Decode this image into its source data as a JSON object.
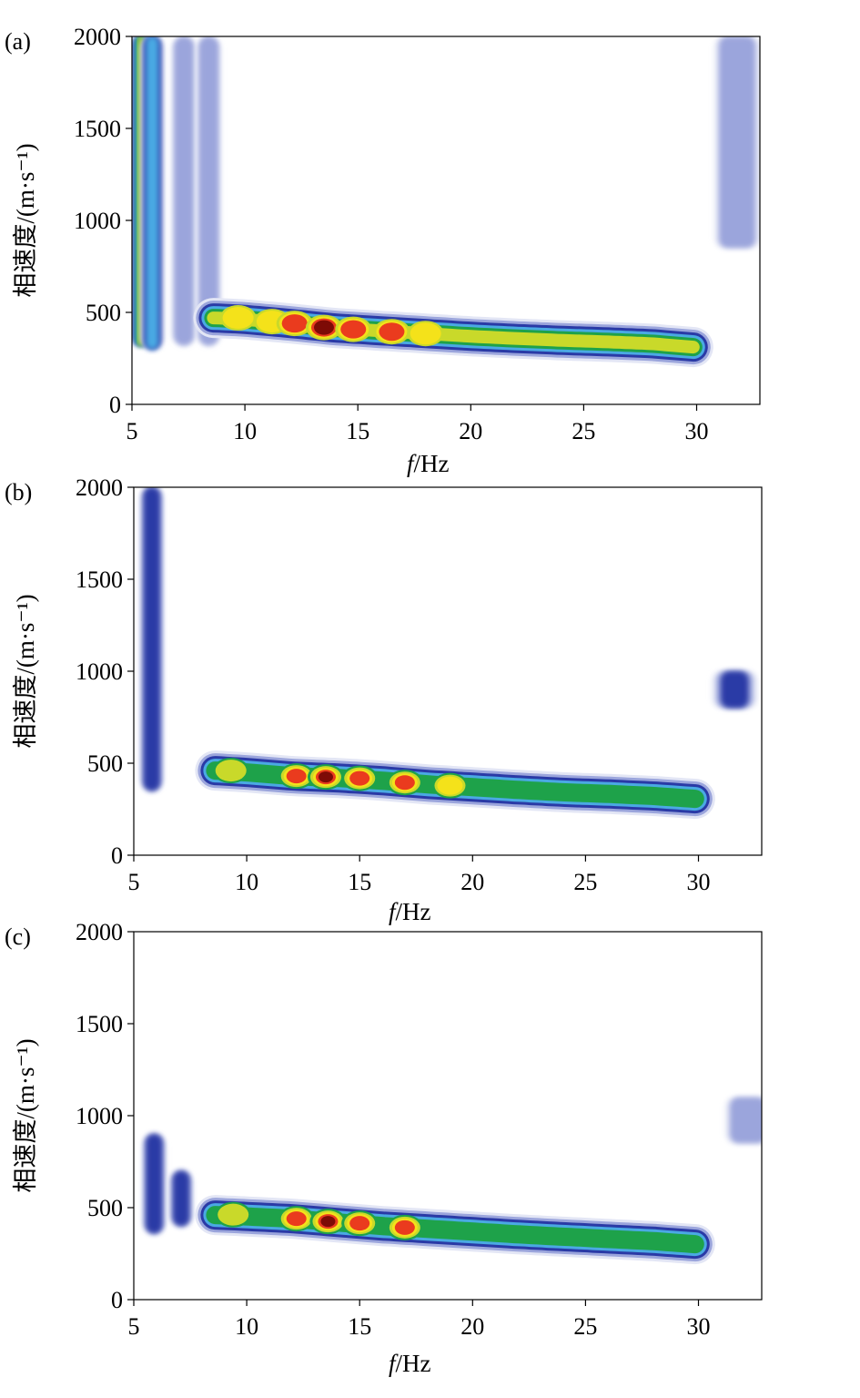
{
  "chart_data": [
    {
      "type": "heatmap",
      "panel_label": "(a)",
      "xlabel_italic": "f",
      "xlabel_unit": "/Hz",
      "ylabel": "相速度/(m·s⁻¹)",
      "xlim": [
        5,
        32.8
      ],
      "ylim": [
        0,
        2000
      ],
      "xticks": [
        5,
        10,
        15,
        20,
        25,
        30
      ],
      "yticks": [
        0,
        500,
        1000,
        1500,
        2000
      ],
      "colormap": [
        "#ffffff",
        "#e3e6f5",
        "#9ba5dc",
        "#2a3aa6",
        "#4aa9e3",
        "#1ea24a",
        "#c9d92a",
        "#f4e21a",
        "#ea3b1e",
        "#7d0b06"
      ],
      "features": {
        "main_ridge": {
          "f_start": 8.6,
          "f_end": 30.0,
          "v": [
            [
              8.6,
              470
            ],
            [
              10,
              462
            ],
            [
              12,
              440
            ],
            [
              14,
              415
            ],
            [
              16,
              400
            ],
            [
              18,
              385
            ],
            [
              20,
              370
            ],
            [
              22,
              358
            ],
            [
              24,
              348
            ],
            [
              26,
              340
            ],
            [
              28,
              330
            ],
            [
              30,
              310
            ]
          ],
          "peaks": [
            [
              9.7,
              470,
              0.78
            ],
            [
              11.2,
              450,
              0.82
            ],
            [
              12.2,
              440,
              0.93
            ],
            [
              13.5,
              418,
              0.99
            ],
            [
              14.8,
              408,
              0.92
            ],
            [
              16.5,
              395,
              0.84
            ],
            [
              18,
              385,
              0.76
            ]
          ],
          "base_intensity": 0.66,
          "end_intensity": 0.36
        },
        "low_freq_columns": [
          {
            "f": 5.4,
            "intensity": 0.62,
            "v_top": 2000,
            "v_bottom": 320
          },
          {
            "f": 5.9,
            "intensity": 0.45,
            "v_top": 2000,
            "v_bottom": 300
          },
          {
            "f": 7.3,
            "intensity": 0.26,
            "v_top": 2000,
            "v_bottom": 320
          },
          {
            "f": 8.4,
            "intensity": 0.26,
            "v_top": 2000,
            "v_bottom": 320
          }
        ],
        "high_freq_column": {
          "f": 31.8,
          "intensity": 0.26,
          "v_top": 2000,
          "v_bottom": 850
        }
      }
    },
    {
      "type": "heatmap",
      "panel_label": "(b)",
      "xlabel_italic": "f",
      "xlabel_unit": "/Hz",
      "ylabel": "相速度/(m·s⁻¹)",
      "xlim": [
        5,
        32.8
      ],
      "ylim": [
        0,
        2000
      ],
      "xticks": [
        5,
        10,
        15,
        20,
        25,
        30
      ],
      "yticks": [
        0,
        500,
        1000,
        1500,
        2000
      ],
      "colormap": [
        "#ffffff",
        "#e3e6f5",
        "#9ba5dc",
        "#2a3aa6",
        "#4aa9e3",
        "#1ea24a",
        "#c9d92a",
        "#f4e21a",
        "#ea3b1e",
        "#7d0b06"
      ],
      "features": {
        "main_ridge": {
          "f_start": 8.6,
          "f_end": 30.0,
          "v": [
            [
              8.6,
              460
            ],
            [
              10,
              450
            ],
            [
              12,
              430
            ],
            [
              14,
              420
            ],
            [
              16,
              405
            ],
            [
              18,
              385
            ],
            [
              20,
              370
            ],
            [
              22,
              355
            ],
            [
              24,
              342
            ],
            [
              26,
              333
            ],
            [
              28,
              322
            ],
            [
              30,
              305
            ]
          ],
          "peaks": [
            [
              9.3,
              460,
              0.72
            ],
            [
              12.2,
              430,
              0.92
            ],
            [
              13.5,
              425,
              0.97
            ],
            [
              15,
              418,
              0.92
            ],
            [
              17,
              395,
              0.84
            ],
            [
              19,
              378,
              0.75
            ]
          ],
          "base_intensity": 0.6,
          "end_intensity": 0.36
        },
        "low_freq_columns": [
          {
            "f": 5.8,
            "intensity": 0.38,
            "v_top": 2000,
            "v_bottom": 350
          }
        ],
        "high_freq_column": {
          "f": 31.6,
          "intensity": 0.28,
          "v_top": 1000,
          "v_bottom": 800
        }
      }
    },
    {
      "type": "heatmap",
      "panel_label": "(c)",
      "xlabel_italic": "f",
      "xlabel_unit": "/Hz",
      "ylabel": "相速度/(m·s⁻¹)",
      "xlim": [
        5,
        32.8
      ],
      "ylim": [
        0,
        2000
      ],
      "xticks": [
        5,
        10,
        15,
        20,
        25,
        30
      ],
      "yticks": [
        0,
        500,
        1000,
        1500,
        2000
      ],
      "colormap": [
        "#ffffff",
        "#e3e6f5",
        "#9ba5dc",
        "#2a3aa6",
        "#4aa9e3",
        "#1ea24a",
        "#c9d92a",
        "#f4e21a",
        "#ea3b1e",
        "#7d0b06"
      ],
      "features": {
        "main_ridge": {
          "f_start": 8.6,
          "f_end": 30.0,
          "v": [
            [
              8.6,
              460
            ],
            [
              10,
              452
            ],
            [
              12,
              440
            ],
            [
              14,
              420
            ],
            [
              16,
              400
            ],
            [
              18,
              385
            ],
            [
              20,
              370
            ],
            [
              22,
              355
            ],
            [
              24,
              342
            ],
            [
              26,
              330
            ],
            [
              28,
              318
            ],
            [
              30,
              300
            ]
          ],
          "peaks": [
            [
              9.4,
              462,
              0.72
            ],
            [
              12.2,
              440,
              0.9
            ],
            [
              13.6,
              425,
              0.96
            ],
            [
              15,
              415,
              0.93
            ],
            [
              17,
              392,
              0.84
            ]
          ],
          "base_intensity": 0.58,
          "end_intensity": 0.36
        },
        "low_freq_columns": [
          {
            "f": 5.9,
            "intensity": 0.36,
            "v_top": 900,
            "v_bottom": 360
          },
          {
            "f": 7.1,
            "intensity": 0.3,
            "v_top": 700,
            "v_bottom": 400
          }
        ],
        "high_freq_column": {
          "f": 32.2,
          "intensity": 0.18,
          "v_top": 1100,
          "v_bottom": 850
        }
      }
    }
  ]
}
